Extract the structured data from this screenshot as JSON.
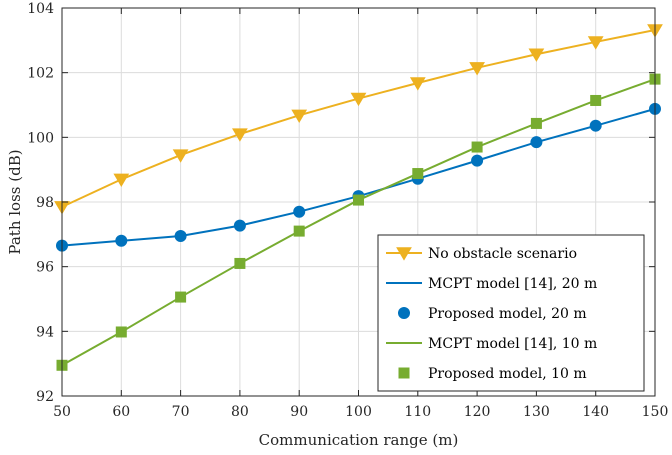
{
  "chart_data": {
    "type": "line",
    "title": "",
    "xlabel": "Communication range (m)",
    "ylabel": "Path loss (dB)",
    "xlim": [
      50,
      150
    ],
    "ylim": [
      92,
      104
    ],
    "grid": true,
    "x_ticks": [
      50,
      60,
      70,
      80,
      90,
      100,
      110,
      120,
      130,
      140,
      150
    ],
    "y_ticks": [
      92,
      94,
      96,
      98,
      100,
      102,
      104
    ],
    "legend_position": "bottom-right",
    "x": [
      50,
      60,
      70,
      80,
      90,
      100,
      110,
      120,
      130,
      140,
      150
    ],
    "series": [
      {
        "name": "No obstacle scenario",
        "style": "line-triangle-down",
        "color": "#EDB120",
        "values": [
          97.85,
          98.7,
          99.45,
          100.1,
          100.68,
          101.2,
          101.68,
          102.15,
          102.57,
          102.95,
          103.32
        ]
      },
      {
        "name": "MCPT model [14], 20 m",
        "style": "line",
        "color": "#0072BD",
        "values": [
          96.65,
          96.8,
          96.95,
          97.27,
          97.7,
          98.18,
          98.72,
          99.28,
          99.85,
          100.36,
          100.88
        ]
      },
      {
        "name": "Proposed model, 20 m",
        "style": "circle",
        "color": "#0072BD",
        "values": [
          96.65,
          96.8,
          96.95,
          97.27,
          97.7,
          98.18,
          98.72,
          99.28,
          99.85,
          100.36,
          100.88
        ]
      },
      {
        "name": "MCPT model [14], 10 m",
        "style": "line",
        "color": "#77AC30",
        "values": [
          92.95,
          93.98,
          95.06,
          96.1,
          97.1,
          98.06,
          98.88,
          99.7,
          100.43,
          101.14,
          101.8
        ]
      },
      {
        "name": "Proposed model, 10 m",
        "style": "square",
        "color": "#77AC30",
        "values": [
          92.95,
          93.98,
          95.06,
          96.1,
          97.1,
          98.06,
          98.88,
          99.7,
          100.43,
          101.14,
          101.8
        ]
      }
    ]
  }
}
